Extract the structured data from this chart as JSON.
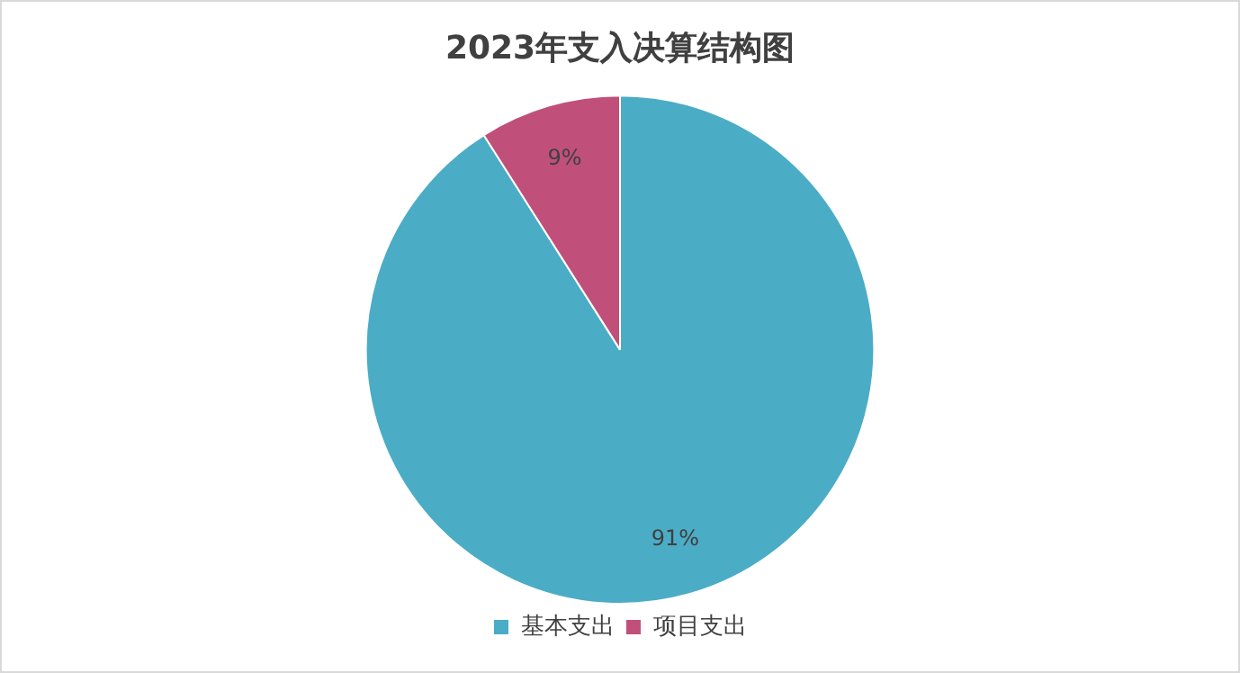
{
  "chart_data": {
    "type": "pie",
    "title": "2023年支入决算结构图",
    "categories": [
      "基本支出",
      "项目支出"
    ],
    "values": [
      91,
      9
    ],
    "colors": [
      "#4bacc6",
      "#c0507a"
    ],
    "value_labels": [
      "91%",
      "9%"
    ],
    "legend": "bottom"
  }
}
